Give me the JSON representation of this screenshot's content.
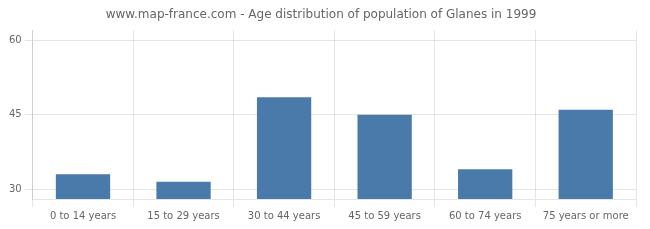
{
  "chart_data": {
    "type": "bar",
    "title": "www.map-france.com - Age distribution of population of Glanes in 1999",
    "categories": [
      "0 to 14 years",
      "15 to 29 years",
      "30 to 44 years",
      "45 to 59 years",
      "60 to 74 years",
      "75 years or more"
    ],
    "values": [
      33,
      31.5,
      48.5,
      45,
      34,
      46
    ],
    "color": "#4a7aaa",
    "ylim": [
      28,
      62
    ],
    "yticks": [
      30,
      45,
      60
    ],
    "grid": true
  }
}
